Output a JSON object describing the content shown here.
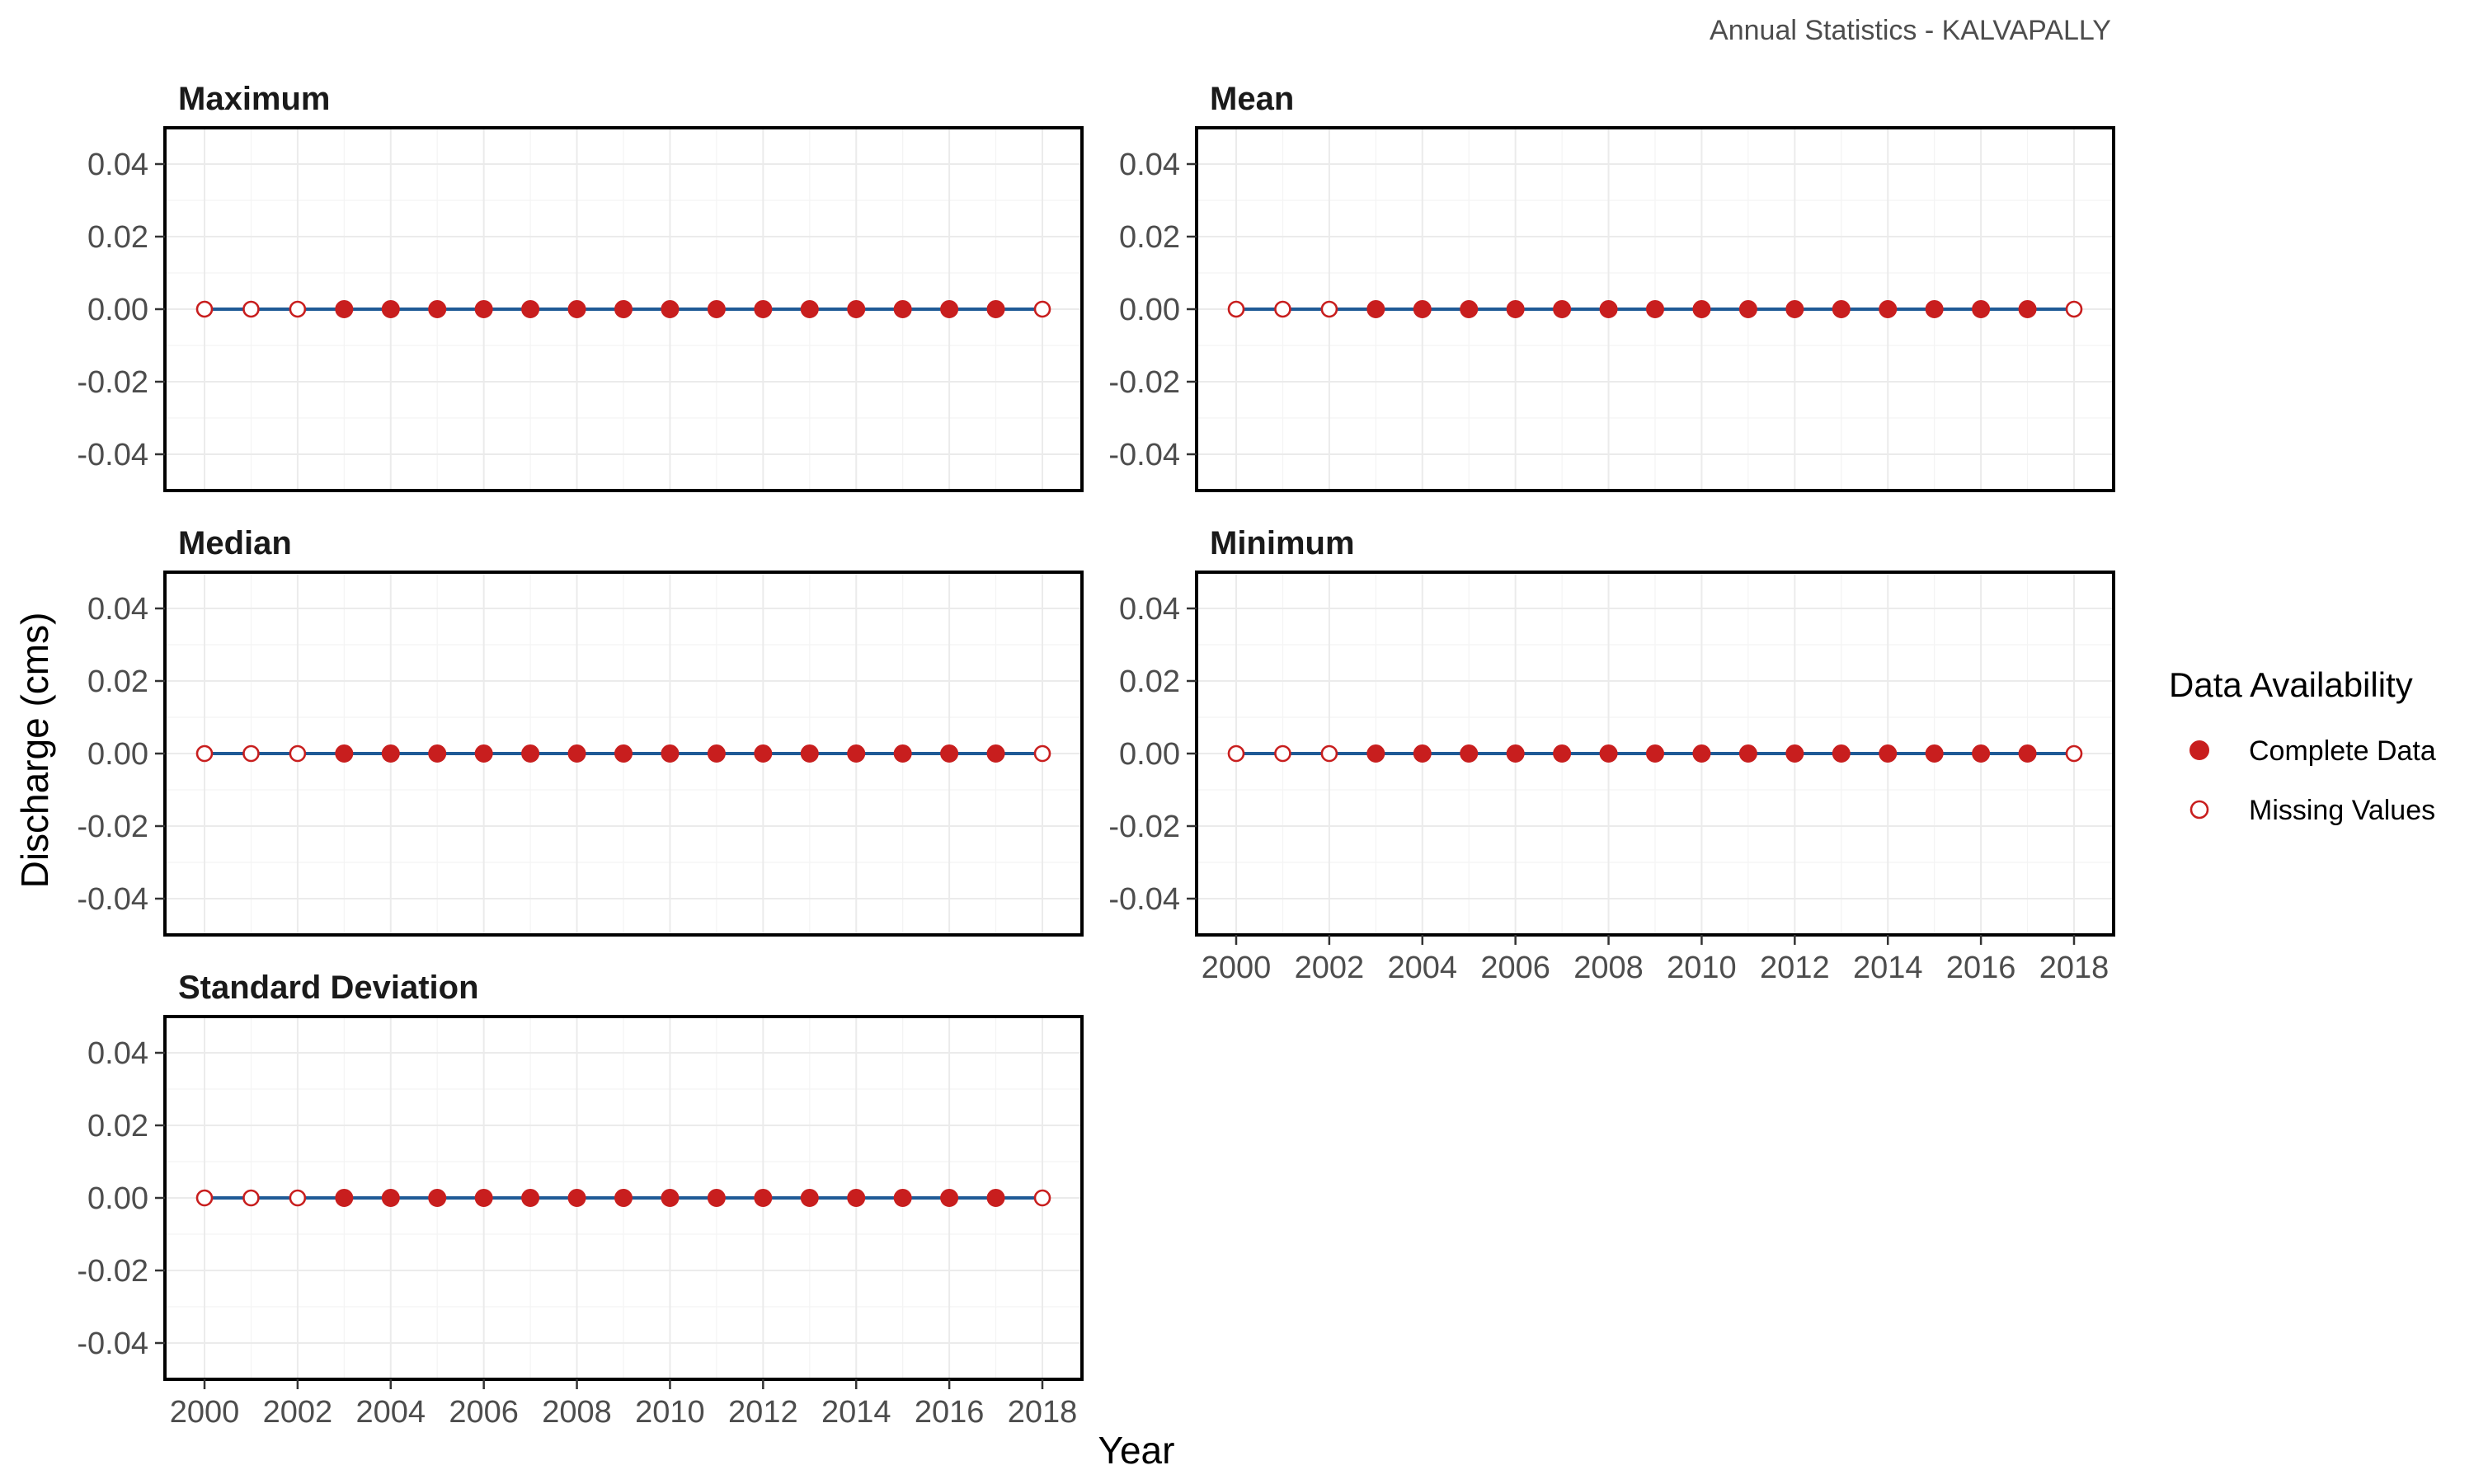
{
  "caption": "Annual Statistics - KALVAPALLY",
  "chart_data": {
    "type": "line",
    "xlabel": "Year",
    "ylabel": "Discharge (cms)",
    "xlim": [
      2000,
      2018
    ],
    "ylim": [
      -0.05,
      0.05
    ],
    "x_ticks": [
      2000,
      2002,
      2004,
      2006,
      2008,
      2010,
      2012,
      2014,
      2016,
      2018
    ],
    "y_ticks": [
      -0.04,
      -0.02,
      0.0,
      0.02,
      0.04
    ],
    "y_tick_labels": [
      "-0.04",
      "-0.02",
      "0.00",
      "0.02",
      "0.04"
    ],
    "grid": true,
    "years": [
      2000,
      2001,
      2002,
      2003,
      2004,
      2005,
      2006,
      2007,
      2008,
      2009,
      2010,
      2011,
      2012,
      2013,
      2014,
      2015,
      2016,
      2017,
      2018
    ],
    "availability": [
      "Missing Values",
      "Missing Values",
      "Missing Values",
      "Complete Data",
      "Complete Data",
      "Complete Data",
      "Complete Data",
      "Complete Data",
      "Complete Data",
      "Complete Data",
      "Complete Data",
      "Complete Data",
      "Complete Data",
      "Complete Data",
      "Complete Data",
      "Complete Data",
      "Complete Data",
      "Complete Data",
      "Missing Values"
    ],
    "legend": {
      "title": "Data Availability",
      "placement": "right",
      "entries": [
        {
          "label": "Complete Data",
          "style": "filled"
        },
        {
          "label": "Missing Values",
          "style": "hollow"
        }
      ]
    },
    "colors": {
      "line": "#1f5a96",
      "point": "#c81e1e"
    },
    "panels": [
      {
        "title": "Maximum",
        "values": [
          0,
          0,
          0,
          0,
          0,
          0,
          0,
          0,
          0,
          0,
          0,
          0,
          0,
          0,
          0,
          0,
          0,
          0,
          0
        ]
      },
      {
        "title": "Mean",
        "values": [
          0,
          0,
          0,
          0,
          0,
          0,
          0,
          0,
          0,
          0,
          0,
          0,
          0,
          0,
          0,
          0,
          0,
          0,
          0
        ]
      },
      {
        "title": "Median",
        "values": [
          0,
          0,
          0,
          0,
          0,
          0,
          0,
          0,
          0,
          0,
          0,
          0,
          0,
          0,
          0,
          0,
          0,
          0,
          0
        ]
      },
      {
        "title": "Minimum",
        "values": [
          0,
          0,
          0,
          0,
          0,
          0,
          0,
          0,
          0,
          0,
          0,
          0,
          0,
          0,
          0,
          0,
          0,
          0,
          0
        ]
      },
      {
        "title": "Standard Deviation",
        "values": [
          0,
          0,
          0,
          0,
          0,
          0,
          0,
          0,
          0,
          0,
          0,
          0,
          0,
          0,
          0,
          0,
          0,
          0,
          0
        ]
      }
    ]
  }
}
